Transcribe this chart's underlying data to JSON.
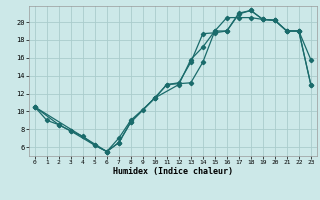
{
  "xlabel": "Humidex (Indice chaleur)",
  "bg_color": "#cce8e8",
  "line_color": "#1a6b6b",
  "grid_color": "#aacccc",
  "xlim": [
    -0.5,
    23.5
  ],
  "ylim": [
    5.0,
    21.8
  ],
  "xticks": [
    0,
    1,
    2,
    3,
    4,
    5,
    6,
    7,
    8,
    9,
    10,
    11,
    12,
    13,
    14,
    15,
    16,
    17,
    18,
    19,
    20,
    21,
    22,
    23
  ],
  "yticks": [
    6,
    8,
    10,
    12,
    14,
    16,
    18,
    20
  ],
  "line1_x": [
    0,
    1,
    2,
    3,
    4,
    5,
    6,
    7,
    8,
    9,
    10,
    11,
    12,
    13,
    14,
    15,
    16,
    17,
    18,
    19,
    20,
    21,
    22,
    23
  ],
  "line1_y": [
    10.5,
    9.0,
    8.5,
    7.8,
    7.2,
    6.2,
    5.5,
    7.0,
    9.0,
    10.2,
    11.5,
    13.0,
    13.2,
    15.5,
    18.7,
    18.8,
    19.0,
    20.9,
    21.3,
    20.3,
    20.2,
    19.0,
    19.0,
    15.8
  ],
  "line2_x": [
    0,
    2,
    3,
    5,
    6,
    7,
    8,
    10,
    11,
    13,
    14,
    15,
    16,
    17,
    18,
    19,
    20,
    21,
    22,
    23
  ],
  "line2_y": [
    10.5,
    8.5,
    7.8,
    6.2,
    5.5,
    6.5,
    8.8,
    11.5,
    13.0,
    13.2,
    15.5,
    19.0,
    19.0,
    21.0,
    21.3,
    20.3,
    20.2,
    19.0,
    19.0,
    13.0
  ],
  "line3_x": [
    0,
    6,
    7,
    8,
    10,
    12,
    13,
    14,
    15,
    16,
    17,
    18,
    19,
    20,
    21,
    22,
    23
  ],
  "line3_y": [
    10.5,
    5.5,
    6.5,
    8.8,
    11.5,
    13.0,
    15.8,
    17.2,
    19.0,
    20.5,
    20.5,
    20.5,
    20.3,
    20.2,
    19.0,
    19.0,
    13.0
  ]
}
